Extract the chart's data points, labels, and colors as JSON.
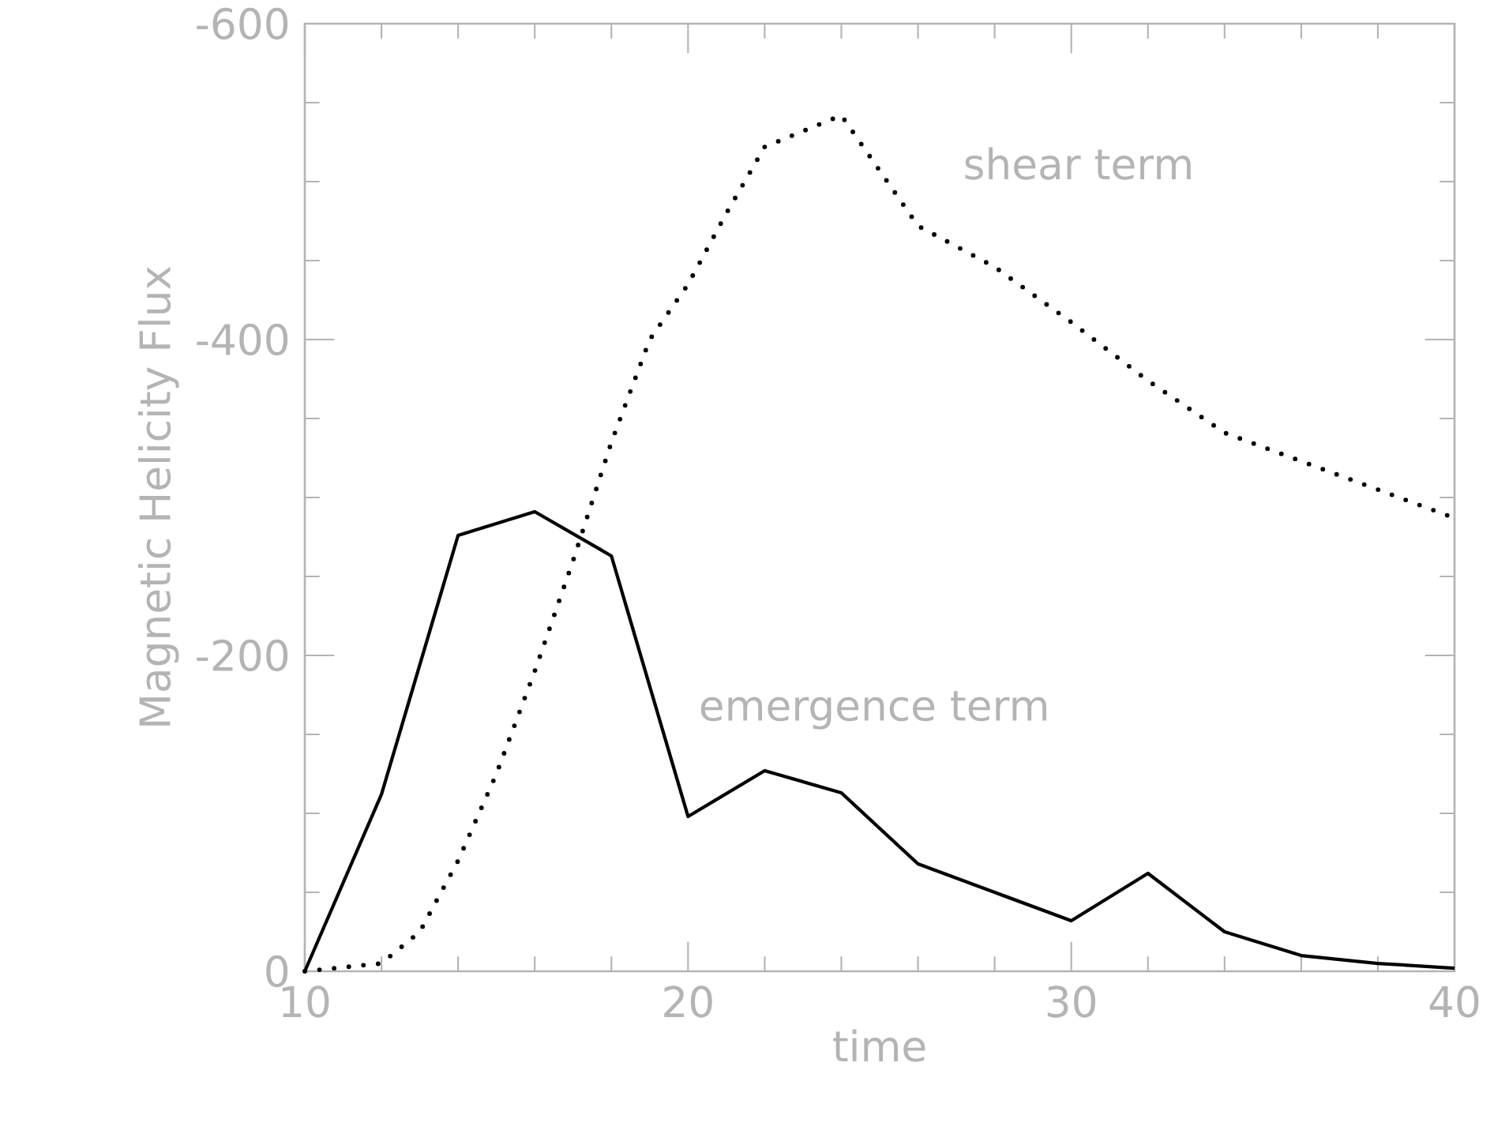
{
  "chart_data": {
    "type": "line",
    "xlabel": "time",
    "ylabel": "Magnetic Helicity Flux",
    "xlim": [
      10,
      40
    ],
    "ylim": [
      0,
      -600
    ],
    "xticks": [
      10,
      20,
      30,
      40
    ],
    "yticks": [
      0,
      -200,
      -400,
      -600
    ],
    "grid": false,
    "marker": "none",
    "series": [
      {
        "name": "emergence term",
        "color": "#000000",
        "line_style": "solid",
        "x": [
          10,
          12,
          14,
          16,
          18,
          20,
          22,
          24,
          26,
          28,
          30,
          32,
          34,
          36,
          38,
          40
        ],
        "values": [
          0,
          -112,
          -276,
          -291,
          -263,
          -98,
          -127,
          -113,
          -68,
          -50,
          -32,
          -62,
          -25,
          -10,
          -5,
          -2
        ]
      },
      {
        "name": "shear term",
        "color": "#000000",
        "line_style": "dotted",
        "x": [
          10,
          12,
          13,
          14,
          15,
          16,
          17,
          18,
          19,
          20,
          21,
          22,
          24,
          26,
          28,
          30,
          32,
          34,
          36,
          38,
          40
        ],
        "values": [
          0,
          -5,
          -25,
          -70,
          -125,
          -190,
          -260,
          -335,
          -400,
          -435,
          -480,
          -522,
          -542,
          -472,
          -446,
          -411,
          -374,
          -341,
          -323,
          -305,
          -287
        ]
      }
    ]
  }
}
